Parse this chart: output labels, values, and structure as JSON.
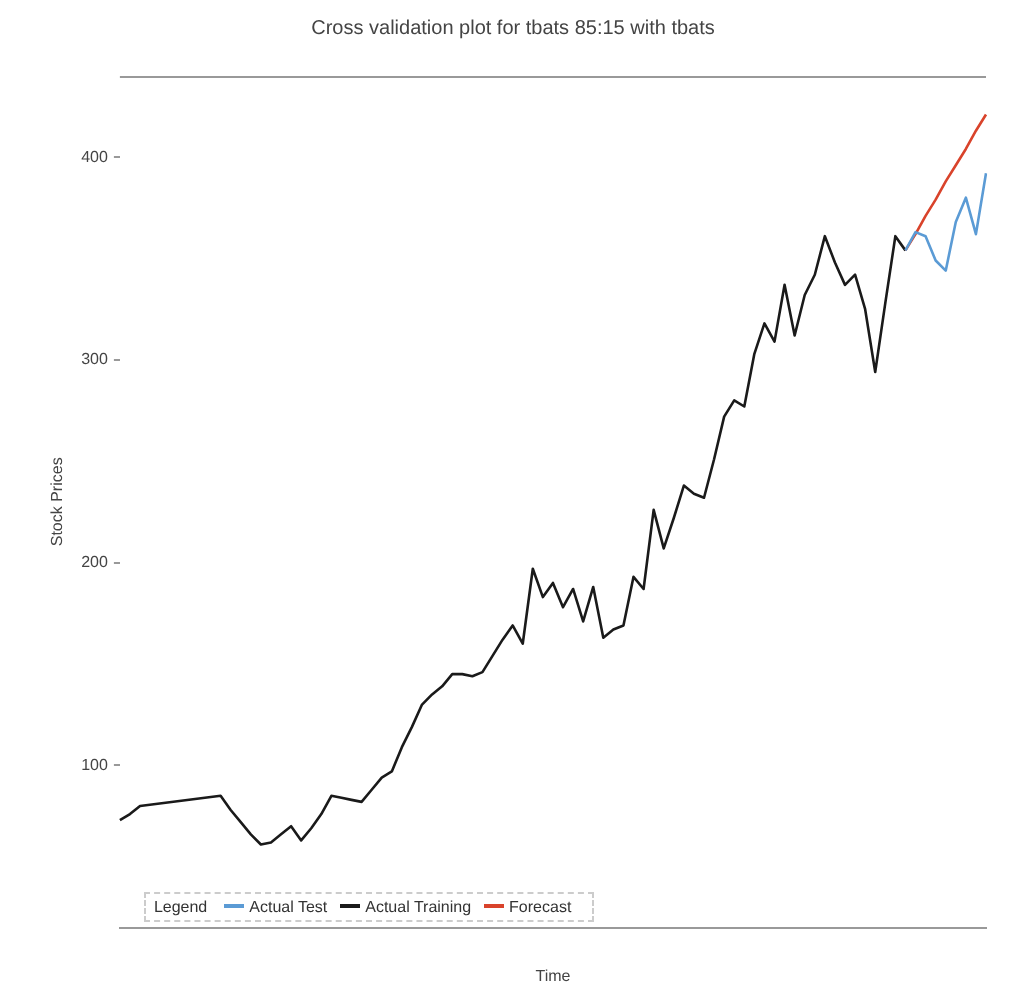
{
  "chart_data": {
    "type": "line",
    "title": "Cross validation plot for tbats 85:15 with tbats",
    "xlabel": "Time",
    "ylabel": "Stock Prices",
    "legend_title": "Legend",
    "categories": [
      null,
      null,
      null,
      null,
      null,
      null,
      null,
      null,
      null,
      null,
      null,
      null,
      null,
      null,
      null,
      null,
      null,
      null,
      null,
      null,
      null,
      null,
      null,
      null,
      null,
      null,
      null,
      null,
      null,
      null,
      null,
      null,
      null,
      null,
      null,
      null,
      null,
      null,
      null,
      null,
      null,
      null,
      null,
      null,
      null,
      null,
      null,
      null,
      null,
      null,
      null,
      null,
      null,
      null,
      null,
      null,
      null,
      null,
      null,
      null,
      null,
      null,
      null,
      null,
      null,
      null,
      null,
      null,
      null,
      null,
      null,
      null,
      null,
      null,
      null,
      null,
      null,
      null,
      null,
      null,
      null,
      null,
      null,
      null,
      null,
      null,
      null
    ],
    "ylim": [
      20,
      440
    ],
    "yticks": [
      100,
      200,
      300,
      400
    ],
    "grid": false,
    "legend": "bottom left",
    "marker": "none",
    "line_style": "solid",
    "series": [
      {
        "name": "Actual Test",
        "color": "#5b9bd5",
        "values": [
          null,
          null,
          null,
          null,
          null,
          null,
          null,
          null,
          null,
          null,
          null,
          null,
          null,
          null,
          null,
          null,
          null,
          null,
          null,
          null,
          null,
          null,
          null,
          null,
          null,
          null,
          null,
          null,
          null,
          null,
          null,
          null,
          null,
          null,
          null,
          null,
          null,
          null,
          null,
          null,
          null,
          null,
          null,
          null,
          null,
          null,
          null,
          null,
          null,
          null,
          null,
          null,
          null,
          null,
          null,
          null,
          null,
          null,
          null,
          null,
          null,
          null,
          null,
          null,
          null,
          null,
          null,
          null,
          null,
          null,
          null,
          null,
          null,
          null,
          null,
          null,
          null,
          null,
          354,
          363,
          361,
          349,
          344,
          368,
          380,
          362,
          392
        ]
      },
      {
        "name": "Actual Training",
        "color": "#1a1a1a",
        "values": [
          73,
          76,
          80,
          null,
          null,
          null,
          null,
          null,
          null,
          null,
          85,
          78,
          72,
          66,
          61,
          62,
          66,
          70,
          63,
          69,
          76,
          85,
          84,
          83,
          82,
          88,
          94,
          97,
          109,
          119,
          130,
          135,
          139,
          145,
          145,
          144,
          146,
          154,
          162,
          169,
          160,
          197,
          183,
          190,
          178,
          187,
          171,
          188,
          163,
          167,
          169,
          193,
          187,
          226,
          207,
          222,
          238,
          234,
          232,
          251,
          272,
          280,
          277,
          303,
          318,
          309,
          337,
          312,
          332,
          342,
          361,
          348,
          337,
          342,
          325,
          294,
          328,
          361,
          354,
          null,
          null,
          null,
          null,
          null,
          null,
          null,
          null
        ]
      },
      {
        "name": "Forecast",
        "color": "#d9432b",
        "values": [
          null,
          null,
          null,
          null,
          null,
          null,
          null,
          null,
          null,
          null,
          null,
          null,
          null,
          null,
          null,
          null,
          null,
          null,
          null,
          null,
          null,
          null,
          null,
          null,
          null,
          null,
          null,
          null,
          null,
          null,
          null,
          null,
          null,
          null,
          null,
          null,
          null,
          null,
          null,
          null,
          null,
          null,
          null,
          null,
          null,
          null,
          null,
          null,
          null,
          null,
          null,
          null,
          null,
          null,
          null,
          null,
          null,
          null,
          null,
          null,
          null,
          null,
          null,
          null,
          null,
          null,
          null,
          null,
          null,
          null,
          null,
          null,
          null,
          null,
          null,
          null,
          null,
          null,
          354,
          362,
          371,
          379,
          388,
          396,
          404,
          413,
          421
        ]
      }
    ]
  }
}
